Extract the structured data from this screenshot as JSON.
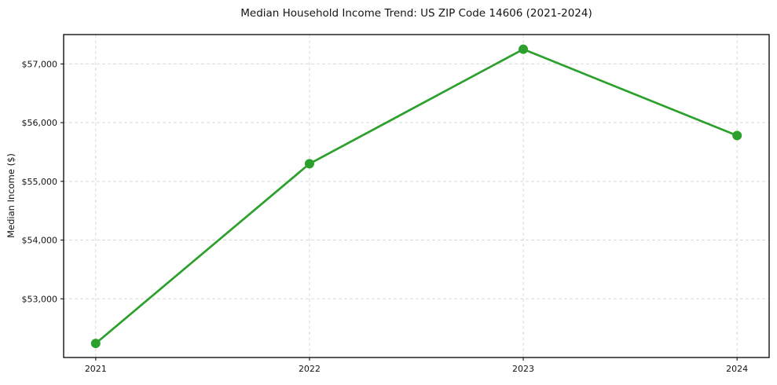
{
  "figure": {
    "background": "#ffffff",
    "border_color": "#000000",
    "tick_color": "#000000",
    "text_color": "#141414"
  },
  "chart_data": {
    "type": "line",
    "title": "Median Household Income Trend: US ZIP Code 14606 (2021-2024)",
    "xlabel": "",
    "ylabel": "Median Income ($)",
    "series": [
      {
        "name": "Median Household Income",
        "x": [
          2021,
          2022,
          2023,
          2024
        ],
        "values": [
          52240,
          55300,
          57250,
          55780
        ],
        "color": "#2ca02c",
        "marker": "circle"
      }
    ],
    "xlim": [
      2020.85,
      2024.15
    ],
    "ylim": [
      52000,
      57500
    ],
    "xticks": {
      "values": [
        2021,
        2022,
        2023,
        2024
      ],
      "labels": [
        "2021",
        "2022",
        "2023",
        "2024"
      ]
    },
    "yticks": {
      "values": [
        53000,
        54000,
        55000,
        56000,
        57000
      ],
      "labels": [
        "$53,000",
        "$54,000",
        "$55,000",
        "$56,000",
        "$57,000"
      ]
    },
    "grid": {
      "on": true,
      "style": "dashed",
      "color": "#d9d9d9"
    },
    "legend": "none"
  }
}
